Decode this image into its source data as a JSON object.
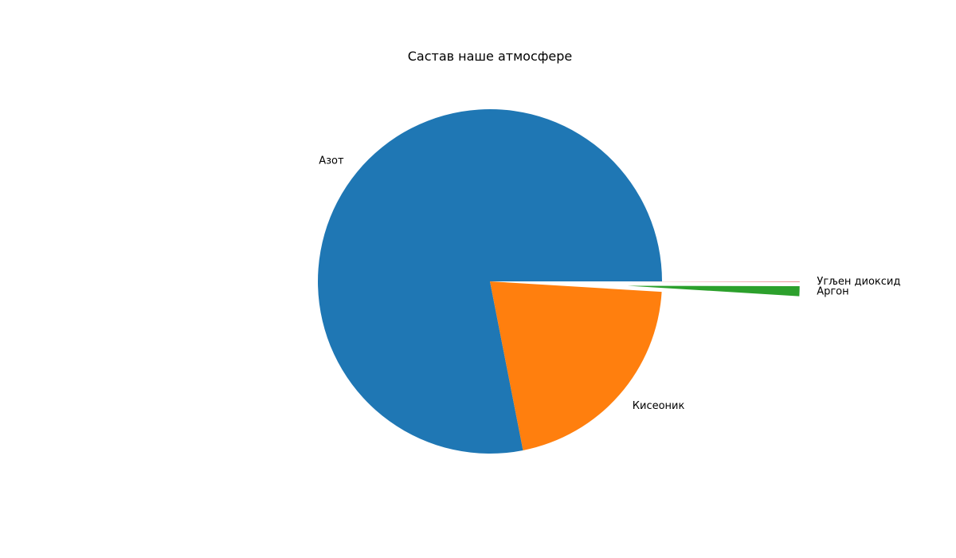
{
  "chart_data": {
    "type": "pie",
    "title": "Састав наше атмосфере",
    "labels": [
      "Азот",
      "Кисеоник",
      "Аргон",
      "Угљен диоксид"
    ],
    "values": [
      78.08,
      20.95,
      0.93,
      0.04
    ],
    "colors": [
      "#1f77b4",
      "#ff7f0e",
      "#2ca02c",
      "#d62728"
    ],
    "explode": [
      0,
      0,
      0.8,
      0.8
    ],
    "start_angle_deg": 0,
    "direction": "counterclockwise"
  }
}
